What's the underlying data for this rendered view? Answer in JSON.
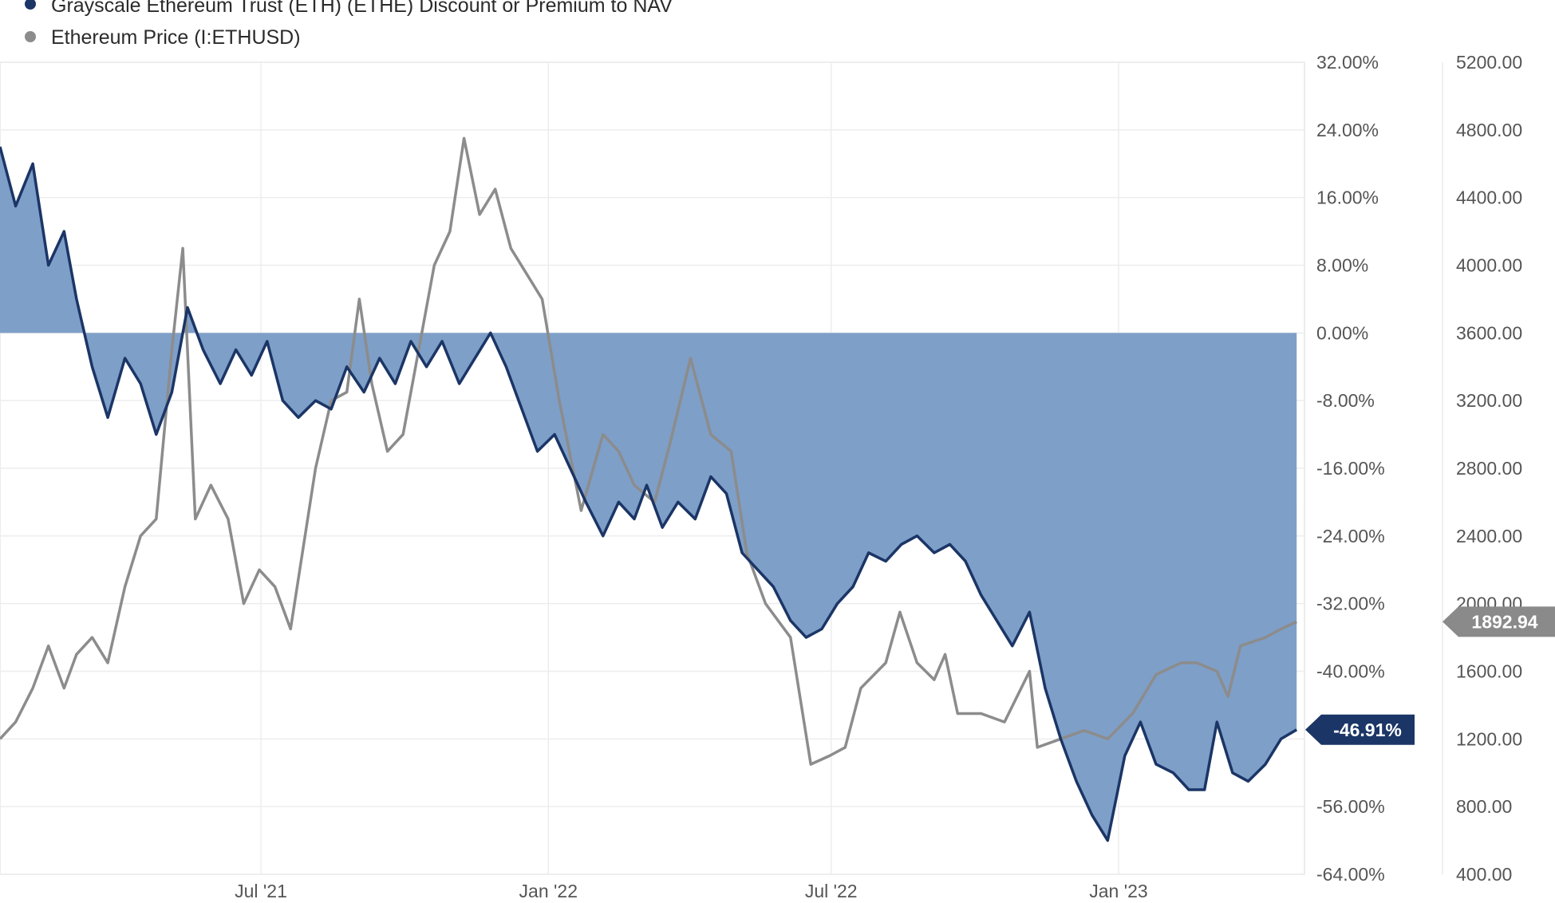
{
  "chart_data": {
    "type": "line",
    "legend": {
      "placement": "top-left",
      "entries": [
        {
          "name": "Grayscale Ethereum Trust (ETH) (ETHE) Discount or Premium to NAV",
          "color": "#1b3566"
        },
        {
          "name": "Ethereum Price (I:ETHUSD)",
          "color": "#8c8c8c"
        }
      ]
    },
    "x_ticks": [
      {
        "label": "Jul '21",
        "date": "2021-07-01"
      },
      {
        "label": "Jan '22",
        "date": "2022-01-01"
      },
      {
        "label": "Jul '22",
        "date": "2022-07-01"
      },
      {
        "label": "Jan '23",
        "date": "2023-01-01"
      }
    ],
    "x_range": [
      "2021-01-15",
      "2023-04-30"
    ],
    "left_axis": {
      "unit": "%",
      "range": [
        -64,
        32
      ],
      "ticks": [
        "32.00%",
        "24.00%",
        "16.00%",
        "8.00%",
        "0.00%",
        "-8.00%",
        "-16.00%",
        "-24.00%",
        "-32.00%",
        "-40.00%",
        "-56.00%",
        "-64.00%"
      ],
      "tick_values": [
        32,
        24,
        16,
        8,
        0,
        -8,
        -16,
        -24,
        -32,
        -40,
        -56,
        -64
      ]
    },
    "right_axis": {
      "range": [
        400,
        5200
      ],
      "ticks": [
        "5200.00",
        "4800.00",
        "4400.00",
        "4000.00",
        "3600.00",
        "3200.00",
        "2800.00",
        "2400.00",
        "2000.00",
        "1600.00",
        "1200.00",
        "800.00",
        "400.00"
      ],
      "tick_values": [
        5200,
        4800,
        4400,
        4000,
        3600,
        3200,
        2800,
        2400,
        2000,
        1600,
        1200,
        800,
        400
      ]
    },
    "grid": true,
    "series": [
      {
        "name": "Grayscale Ethereum Trust (ETH) (ETHE) Discount or Premium to NAV",
        "axis": "left",
        "fill_to_zero": true,
        "color": "#1b3566",
        "fill_color": "#7a9cc6",
        "last_value_label": "-46.91%",
        "points": [
          [
            "2021-01-15",
            22
          ],
          [
            "2021-01-25",
            15
          ],
          [
            "2021-02-05",
            20
          ],
          [
            "2021-02-15",
            8
          ],
          [
            "2021-02-25",
            12
          ],
          [
            "2021-03-05",
            4
          ],
          [
            "2021-03-15",
            -4
          ],
          [
            "2021-03-25",
            -10
          ],
          [
            "2021-04-05",
            -3
          ],
          [
            "2021-04-15",
            -6
          ],
          [
            "2021-04-25",
            -12
          ],
          [
            "2021-05-05",
            -7
          ],
          [
            "2021-05-15",
            3
          ],
          [
            "2021-05-25",
            -2
          ],
          [
            "2021-06-05",
            -6
          ],
          [
            "2021-06-15",
            -2
          ],
          [
            "2021-06-25",
            -5
          ],
          [
            "2021-07-05",
            -1
          ],
          [
            "2021-07-15",
            -8
          ],
          [
            "2021-07-25",
            -10
          ],
          [
            "2021-08-05",
            -8
          ],
          [
            "2021-08-15",
            -9
          ],
          [
            "2021-08-25",
            -4
          ],
          [
            "2021-09-05",
            -7
          ],
          [
            "2021-09-15",
            -3
          ],
          [
            "2021-09-25",
            -6
          ],
          [
            "2021-10-05",
            -1
          ],
          [
            "2021-10-15",
            -4
          ],
          [
            "2021-10-25",
            -1
          ],
          [
            "2021-11-05",
            -6
          ],
          [
            "2021-11-15",
            -3
          ],
          [
            "2021-11-25",
            0
          ],
          [
            "2021-12-05",
            -4
          ],
          [
            "2021-12-15",
            -9
          ],
          [
            "2021-12-25",
            -14
          ],
          [
            "2022-01-05",
            -12
          ],
          [
            "2022-01-15",
            -16
          ],
          [
            "2022-01-25",
            -20
          ],
          [
            "2022-02-05",
            -24
          ],
          [
            "2022-02-15",
            -20
          ],
          [
            "2022-02-25",
            -22
          ],
          [
            "2022-03-05",
            -18
          ],
          [
            "2022-03-15",
            -23
          ],
          [
            "2022-03-25",
            -20
          ],
          [
            "2022-04-05",
            -22
          ],
          [
            "2022-04-15",
            -17
          ],
          [
            "2022-04-25",
            -19
          ],
          [
            "2022-05-05",
            -26
          ],
          [
            "2022-05-15",
            -28
          ],
          [
            "2022-05-25",
            -30
          ],
          [
            "2022-06-05",
            -34
          ],
          [
            "2022-06-15",
            -36
          ],
          [
            "2022-06-25",
            -35
          ],
          [
            "2022-07-05",
            -32
          ],
          [
            "2022-07-15",
            -30
          ],
          [
            "2022-07-25",
            -26
          ],
          [
            "2022-08-05",
            -27
          ],
          [
            "2022-08-15",
            -25
          ],
          [
            "2022-08-25",
            -24
          ],
          [
            "2022-09-05",
            -26
          ],
          [
            "2022-09-15",
            -25
          ],
          [
            "2022-09-25",
            -27
          ],
          [
            "2022-10-05",
            -31
          ],
          [
            "2022-10-15",
            -34
          ],
          [
            "2022-10-25",
            -37
          ],
          [
            "2022-11-05",
            -33
          ],
          [
            "2022-11-15",
            -42
          ],
          [
            "2022-11-25",
            -48
          ],
          [
            "2022-12-05",
            -53
          ],
          [
            "2022-12-15",
            -57
          ],
          [
            "2022-12-25",
            -60
          ],
          [
            "2023-01-05",
            -50
          ],
          [
            "2023-01-15",
            -46
          ],
          [
            "2023-01-25",
            -51
          ],
          [
            "2023-02-05",
            -52
          ],
          [
            "2023-02-15",
            -54
          ],
          [
            "2023-02-25",
            -54
          ],
          [
            "2023-03-05",
            -46
          ],
          [
            "2023-03-15",
            -52
          ],
          [
            "2023-03-25",
            -53
          ],
          [
            "2023-04-05",
            -51
          ],
          [
            "2023-04-15",
            -48
          ],
          [
            "2023-04-25",
            -46.91
          ]
        ]
      },
      {
        "name": "Ethereum Price (I:ETHUSD)",
        "axis": "right",
        "color": "#8c8c8c",
        "last_value_label": "1892.94",
        "points": [
          [
            "2021-01-15",
            1200
          ],
          [
            "2021-01-25",
            1300
          ],
          [
            "2021-02-05",
            1500
          ],
          [
            "2021-02-15",
            1750
          ],
          [
            "2021-02-25",
            1500
          ],
          [
            "2021-03-05",
            1700
          ],
          [
            "2021-03-15",
            1800
          ],
          [
            "2021-03-25",
            1650
          ],
          [
            "2021-04-05",
            2100
          ],
          [
            "2021-04-15",
            2400
          ],
          [
            "2021-04-25",
            2500
          ],
          [
            "2021-05-05",
            3500
          ],
          [
            "2021-05-12",
            4100
          ],
          [
            "2021-05-20",
            2500
          ],
          [
            "2021-05-30",
            2700
          ],
          [
            "2021-06-10",
            2500
          ],
          [
            "2021-06-20",
            2000
          ],
          [
            "2021-06-30",
            2200
          ],
          [
            "2021-07-10",
            2100
          ],
          [
            "2021-07-20",
            1850
          ],
          [
            "2021-08-05",
            2800
          ],
          [
            "2021-08-15",
            3200
          ],
          [
            "2021-08-25",
            3250
          ],
          [
            "2021-09-02",
            3800
          ],
          [
            "2021-09-10",
            3300
          ],
          [
            "2021-09-20",
            2900
          ],
          [
            "2021-09-30",
            3000
          ],
          [
            "2021-10-10",
            3500
          ],
          [
            "2021-10-20",
            4000
          ],
          [
            "2021-10-30",
            4200
          ],
          [
            "2021-11-08",
            4750
          ],
          [
            "2021-11-18",
            4300
          ],
          [
            "2021-11-28",
            4450
          ],
          [
            "2021-12-08",
            4100
          ],
          [
            "2021-12-18",
            3950
          ],
          [
            "2021-12-28",
            3800
          ],
          [
            "2022-01-08",
            3200
          ],
          [
            "2022-01-22",
            2550
          ],
          [
            "2022-02-05",
            3000
          ],
          [
            "2022-02-15",
            2900
          ],
          [
            "2022-02-25",
            2700
          ],
          [
            "2022-03-10",
            2600
          ],
          [
            "2022-03-20",
            2950
          ],
          [
            "2022-04-02",
            3450
          ],
          [
            "2022-04-15",
            3000
          ],
          [
            "2022-04-28",
            2900
          ],
          [
            "2022-05-08",
            2300
          ],
          [
            "2022-05-20",
            2000
          ],
          [
            "2022-06-05",
            1800
          ],
          [
            "2022-06-18",
            1050
          ],
          [
            "2022-06-30",
            1100
          ],
          [
            "2022-07-10",
            1150
          ],
          [
            "2022-07-20",
            1500
          ],
          [
            "2022-08-05",
            1650
          ],
          [
            "2022-08-14",
            1950
          ],
          [
            "2022-08-25",
            1650
          ],
          [
            "2022-09-05",
            1550
          ],
          [
            "2022-09-12",
            1700
          ],
          [
            "2022-09-20",
            1350
          ],
          [
            "2022-10-05",
            1350
          ],
          [
            "2022-10-20",
            1300
          ],
          [
            "2022-11-05",
            1600
          ],
          [
            "2022-11-10",
            1150
          ],
          [
            "2022-11-25",
            1200
          ],
          [
            "2022-12-10",
            1250
          ],
          [
            "2022-12-25",
            1200
          ],
          [
            "2023-01-10",
            1350
          ],
          [
            "2023-01-25",
            1580
          ],
          [
            "2023-02-10",
            1650
          ],
          [
            "2023-02-20",
            1650
          ],
          [
            "2023-03-05",
            1600
          ],
          [
            "2023-03-12",
            1450
          ],
          [
            "2023-03-20",
            1750
          ],
          [
            "2023-04-05",
            1800
          ],
          [
            "2023-04-15",
            1850
          ],
          [
            "2023-04-25",
            1892.94
          ]
        ]
      }
    ]
  }
}
